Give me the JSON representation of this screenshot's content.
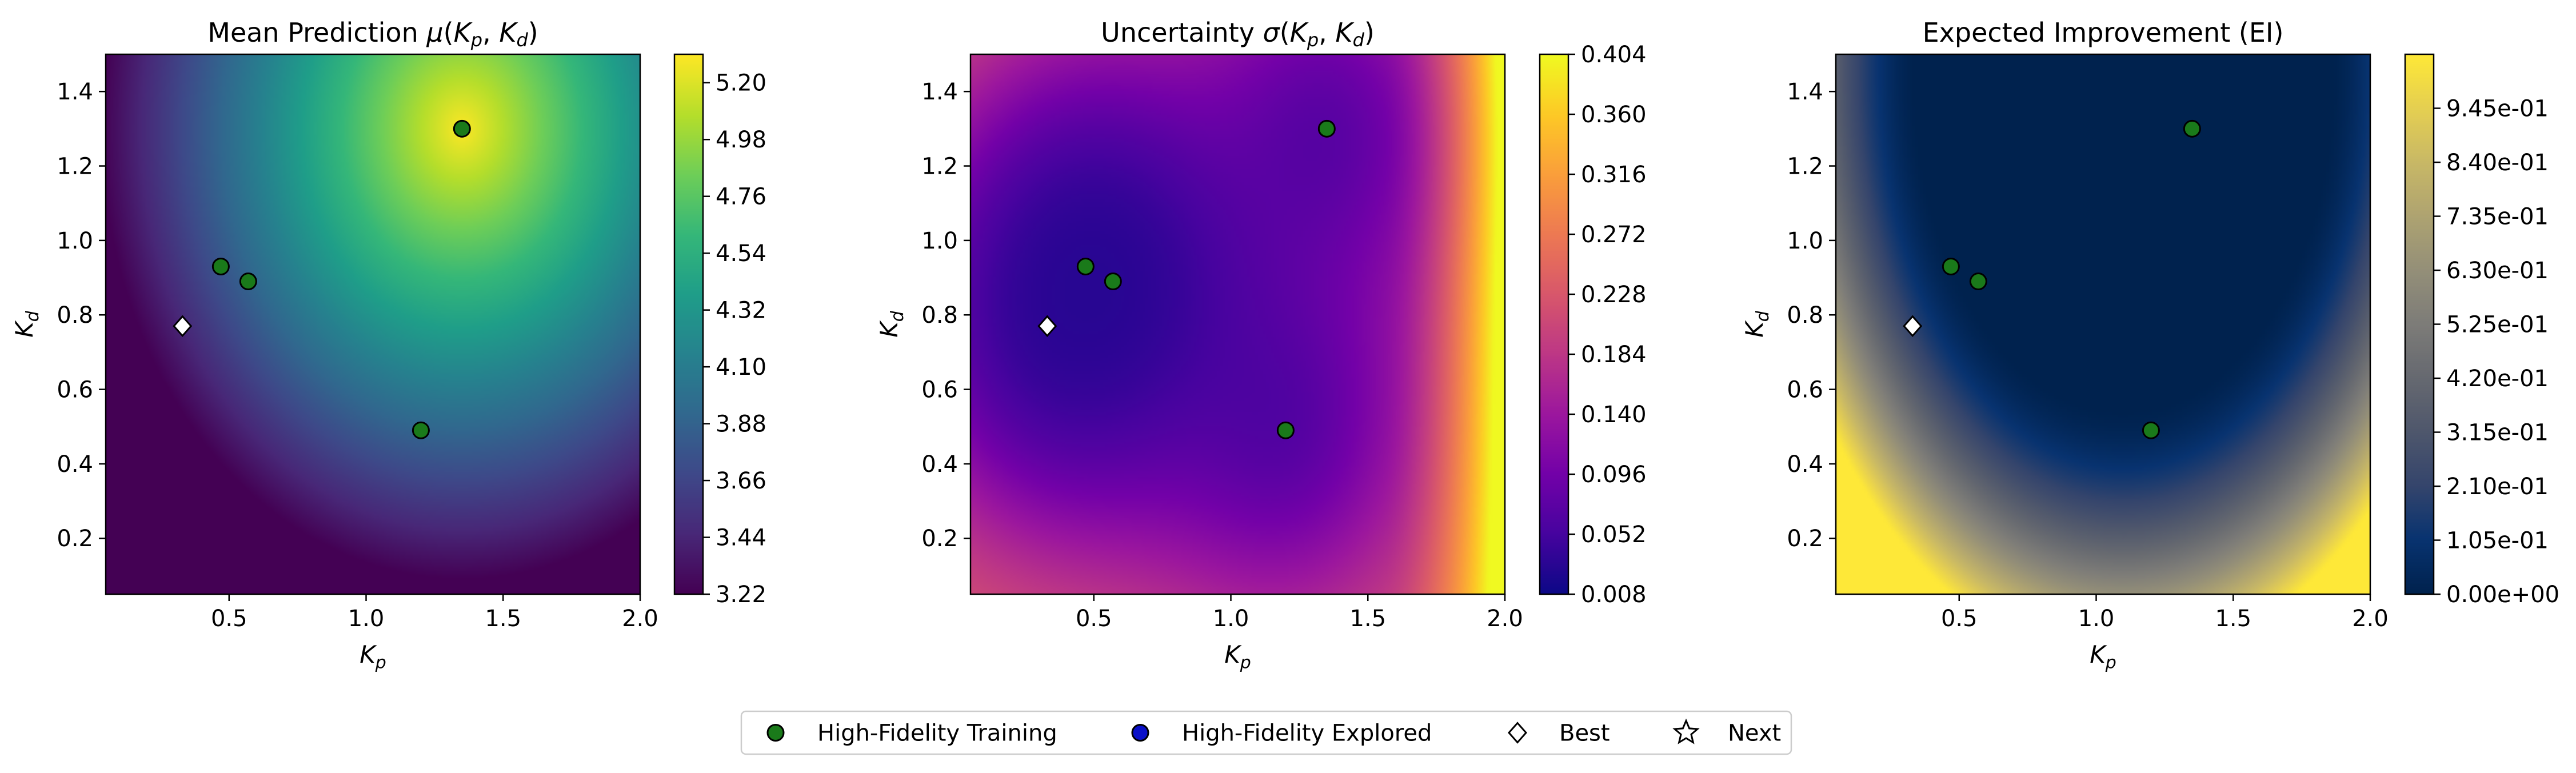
{
  "chart_data": [
    {
      "type": "heatmap",
      "title": "Mean Prediction μ(Kp, Kd)",
      "title_main": "Mean Prediction ",
      "title_sym": "μ",
      "xlabel": "Kp",
      "ylabel": "Kd",
      "xlim": [
        0.05,
        2.0
      ],
      "ylim": [
        0.05,
        1.5
      ],
      "xticks": [
        "0.5",
        "1.0",
        "1.5",
        "2.0"
      ],
      "yticks": [
        "0.2",
        "0.4",
        "0.6",
        "0.8",
        "1.0",
        "1.2",
        "1.4"
      ],
      "colormap": "viridis",
      "colorbar_range": [
        3.22,
        5.31
      ],
      "colorbar_ticks": [
        "3.22",
        "3.44",
        "3.66",
        "3.88",
        "4.10",
        "4.32",
        "4.54",
        "4.76",
        "4.98",
        "5.20"
      ],
      "field_center": [
        1.35,
        1.3
      ],
      "field_min": 3.22,
      "field_max": 5.31,
      "training_points": [
        [
          0.47,
          0.93
        ],
        [
          0.57,
          0.89
        ],
        [
          1.35,
          1.3
        ],
        [
          1.2,
          0.49
        ]
      ],
      "best_point": [
        0.33,
        0.77
      ]
    },
    {
      "type": "heatmap",
      "title": "Uncertainty σ(Kp, Kd)",
      "title_main": "Uncertainty ",
      "title_sym": "σ",
      "xlabel": "Kp",
      "ylabel": "Kd",
      "xlim": [
        0.05,
        2.0
      ],
      "ylim": [
        0.05,
        1.5
      ],
      "xticks": [
        "0.5",
        "1.0",
        "1.5",
        "2.0"
      ],
      "yticks": [
        "0.2",
        "0.4",
        "0.6",
        "0.8",
        "1.0",
        "1.2",
        "1.4"
      ],
      "colormap": "plasma",
      "colorbar_range": [
        0.008,
        0.404
      ],
      "colorbar_ticks": [
        "0.008",
        "0.052",
        "0.096",
        "0.140",
        "0.184",
        "0.228",
        "0.272",
        "0.316",
        "0.360",
        "0.404"
      ],
      "training_points": [
        [
          0.47,
          0.93
        ],
        [
          0.57,
          0.89
        ],
        [
          1.35,
          1.3
        ],
        [
          1.2,
          0.49
        ]
      ],
      "best_point": [
        0.33,
        0.77
      ]
    },
    {
      "type": "heatmap",
      "title": "Expected Improvement (EI)",
      "xlabel": "Kp",
      "ylabel": "Kd",
      "xlim": [
        0.05,
        2.0
      ],
      "ylim": [
        0.05,
        1.5
      ],
      "xticks": [
        "0.5",
        "1.0",
        "1.5",
        "2.0"
      ],
      "yticks": [
        "0.2",
        "0.4",
        "0.6",
        "0.8",
        "1.0",
        "1.2",
        "1.4"
      ],
      "colormap": "cividis",
      "colorbar_range": [
        0.0,
        1.05
      ],
      "colorbar_ticks": [
        "0.00e+00",
        "1.05e-01",
        "2.10e-01",
        "3.15e-01",
        "4.20e-01",
        "5.25e-01",
        "6.30e-01",
        "7.35e-01",
        "8.40e-01",
        "9.45e-01"
      ],
      "training_points": [
        [
          0.47,
          0.93
        ],
        [
          0.57,
          0.89
        ],
        [
          1.35,
          1.3
        ],
        [
          1.2,
          0.49
        ]
      ],
      "best_point": [
        0.33,
        0.77
      ]
    }
  ],
  "legend": {
    "placement": "bottom-center",
    "items": [
      {
        "label": "High-Fidelity Training",
        "marker": "circle",
        "color": "#1a7a1a"
      },
      {
        "label": "High-Fidelity Explored",
        "marker": "circle",
        "color": "#0a10c8"
      },
      {
        "label": "Best",
        "marker": "diamond",
        "color": "#ffffff"
      },
      {
        "label": "Next",
        "marker": "star",
        "color": "#ffffff"
      }
    ]
  }
}
